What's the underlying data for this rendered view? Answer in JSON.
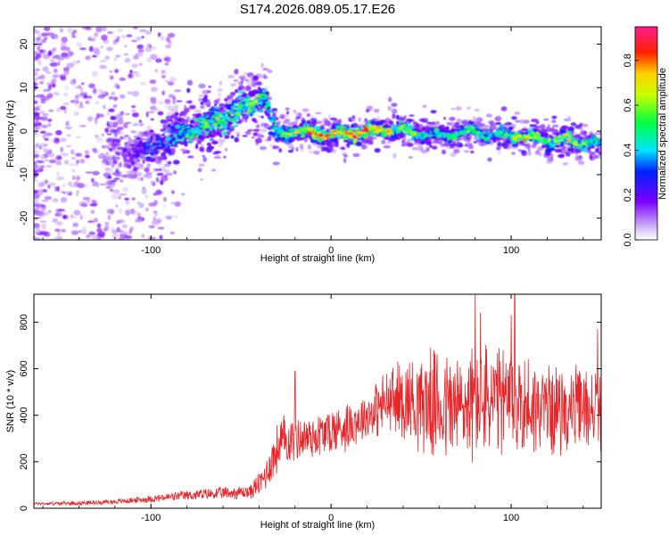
{
  "title": "S174.2026.089.05.17.E26",
  "colors": {
    "snr_line": "#e8262a",
    "axis": "#000000",
    "background": "#ffffff"
  },
  "chart_data": [
    {
      "type": "heatmap",
      "name": "spectrogram",
      "xlabel": "Height of straight line (km)",
      "ylabel": "Frequency (Hz)",
      "xlim": [
        -165,
        150
      ],
      "ylim": [
        -25,
        24
      ],
      "xticks": [
        -100,
        0,
        100
      ],
      "xtick_labels": [
        "-100",
        "0",
        "100"
      ],
      "yticks": [
        -20,
        -10,
        0,
        10,
        20
      ],
      "ytick_labels": [
        "-20",
        "-10",
        "0",
        "10",
        "20"
      ],
      "colorbar": {
        "label": "Normalized spectral amplitude",
        "range": [
          0,
          0.95
        ],
        "ticks": [
          0.0,
          0.2,
          0.4,
          0.6,
          0.8
        ],
        "tick_labels": [
          "0.0",
          "0.2",
          "0.4",
          "0.6",
          "0.8"
        ],
        "colormap": "rainbow"
      },
      "ridge": {
        "description": "frequency ridge center (Hz) vs height (km)",
        "x": [
          -110,
          -100,
          -90,
          -80,
          -70,
          -60,
          -50,
          -42,
          -36,
          -33,
          -30,
          -20,
          -10,
          0,
          10,
          20,
          30,
          40,
          50,
          60,
          70,
          80,
          90,
          100,
          110,
          120,
          130,
          140,
          148
        ],
        "y": [
          -5,
          -4,
          -2,
          0,
          1,
          3,
          5,
          7,
          8,
          2,
          -1,
          0,
          -0.5,
          -1,
          -0.5,
          0,
          0.5,
          0,
          -0.5,
          -1,
          -0.5,
          0,
          -1,
          -1,
          -1.5,
          -2,
          -2,
          -2.5,
          -3
        ],
        "peak_amplitude": [
          0.2,
          0.35,
          0.4,
          0.5,
          0.55,
          0.6,
          0.55,
          0.6,
          0.5,
          0.45,
          0.55,
          0.7,
          0.85,
          0.75,
          0.9,
          0.8,
          0.7,
          0.65,
          0.5,
          0.45,
          0.5,
          0.55,
          0.45,
          0.6,
          0.75,
          0.6,
          0.7,
          0.55,
          0.5
        ]
      }
    },
    {
      "type": "line",
      "name": "snr",
      "xlabel": "Height of straight line (km)",
      "ylabel": "SNR (10 * v/v)",
      "xlim": [
        -165,
        150
      ],
      "ylim": [
        0,
        920
      ],
      "xticks": [
        -100,
        0,
        100
      ],
      "xtick_labels": [
        "-100",
        "0",
        "100"
      ],
      "yticks": [
        0,
        200,
        400,
        600,
        800
      ],
      "ytick_labels": [
        "0",
        "200",
        "400",
        "600",
        "800"
      ],
      "envelope": {
        "description": "approximate mean SNR and spread vs height",
        "x": [
          -165,
          -140,
          -120,
          -100,
          -80,
          -60,
          -45,
          -38,
          -32,
          -28,
          -20,
          -10,
          0,
          10,
          20,
          30,
          40,
          50,
          60,
          70,
          80,
          90,
          100,
          110,
          120,
          130,
          140,
          150
        ],
        "mean": [
          20,
          22,
          28,
          40,
          55,
          65,
          70,
          120,
          220,
          280,
          300,
          310,
          330,
          360,
          400,
          450,
          470,
          460,
          440,
          430,
          450,
          460,
          450,
          440,
          430,
          420,
          430,
          430
        ],
        "spread": [
          8,
          10,
          12,
          18,
          25,
          30,
          35,
          70,
          110,
          140,
          110,
          110,
          120,
          120,
          110,
          160,
          200,
          240,
          270,
          280,
          280,
          280,
          260,
          240,
          220,
          200,
          200,
          200
        ],
        "peaks": [
          [
            -20,
            590
          ],
          [
            80,
            920
          ],
          [
            83,
            840
          ],
          [
            100,
            830
          ],
          [
            102,
            920
          ],
          [
            148,
            770
          ]
        ]
      }
    }
  ]
}
